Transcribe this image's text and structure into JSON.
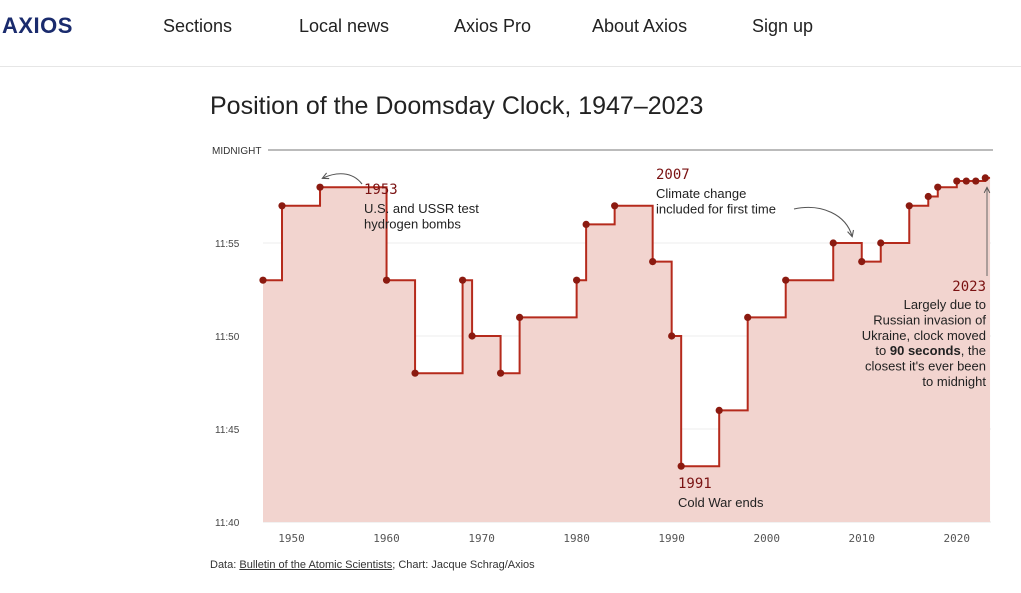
{
  "header": {
    "logo": "AXIOS",
    "nav": [
      "Sections",
      "Local news",
      "Axios Pro",
      "About Axios",
      "Sign up"
    ]
  },
  "title": "Position of the Doomsday Clock, 1947–2023",
  "source": {
    "prefix": "Data: ",
    "link_text": "Bulletin of the Atomic Scientists",
    "suffix": "; Chart: Jacque Schrag/Axios"
  },
  "colors": {
    "line": "#b52a1c",
    "dot": "#8b1a10",
    "fill": "#f2d4cf",
    "annotation_year": "#7a1212"
  },
  "chart_data": {
    "type": "line",
    "title": "Position of the Doomsday Clock, 1947–2023",
    "xlabel": "",
    "ylabel": "",
    "y_unit": "minutes before midnight",
    "midnight_label": "MIDNIGHT",
    "xlim": [
      1947,
      2023
    ],
    "ylim": [
      20,
      0
    ],
    "x_ticks": [
      1950,
      1960,
      1970,
      1980,
      1990,
      2000,
      2010,
      2020
    ],
    "y_ticks": [
      {
        "value": 5,
        "label": "11:55"
      },
      {
        "value": 10,
        "label": "11:50"
      },
      {
        "value": 15,
        "label": "11:45"
      },
      {
        "value": 20,
        "label": "11:40"
      }
    ],
    "x": [
      1947,
      1949,
      1953,
      1960,
      1963,
      1968,
      1969,
      1972,
      1974,
      1980,
      1981,
      1984,
      1988,
      1990,
      1991,
      1995,
      1998,
      2002,
      2007,
      2010,
      2012,
      2015,
      2017,
      2018,
      2020,
      2021,
      2022,
      2023
    ],
    "values": [
      7,
      3,
      2,
      7,
      12,
      7,
      10,
      12,
      9,
      7,
      4,
      3,
      6,
      10,
      17,
      14,
      9,
      7,
      5,
      6,
      5,
      3,
      2.5,
      2,
      1.67,
      1.67,
      1.67,
      1.5
    ],
    "end_year": 2023.5,
    "annotations": [
      {
        "year": "1953",
        "text": [
          "U.S. and USSR test",
          "hydrogen bombs"
        ]
      },
      {
        "year": "2007",
        "text": [
          "Climate change",
          "included for first time"
        ]
      },
      {
        "year": "1991",
        "text": [
          "Cold War ends"
        ]
      },
      {
        "year": "2023",
        "text": [
          "Largely due to",
          "Russian invasion of",
          "Ukraine, clock moved"
        ],
        "text_pre": "to ",
        "text_bold": "90 seconds",
        "text_post": ", the",
        "text_tail": [
          "closest it's ever been",
          "to midnight"
        ]
      }
    ]
  }
}
